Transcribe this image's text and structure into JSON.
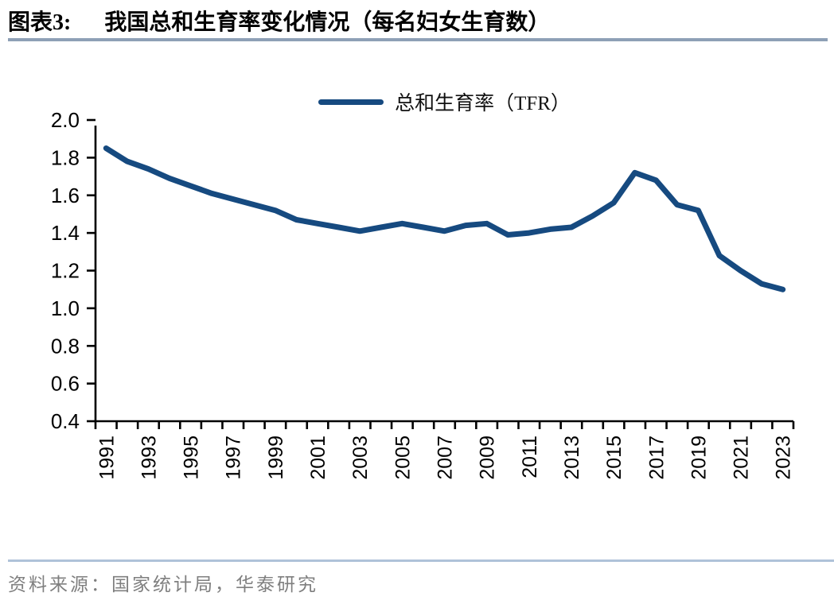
{
  "header": {
    "figure_label": "图表3:",
    "figure_title": "我国总和生育率变化情况（每名妇女生育数）"
  },
  "legend": {
    "label": "总和生育率（TFR）"
  },
  "footer": {
    "source": "资料来源：国家统计局，华泰研究"
  },
  "colors": {
    "line": "#164A80",
    "title_rule": "#8EA0B6",
    "footer_rule": "#AFC2D9",
    "source_text": "#7F7F7F",
    "axis": "#000000"
  },
  "chart_data": {
    "type": "line",
    "title": "我国总和生育率变化情况（每名妇女生育数）",
    "legend_entries": [
      "总和生育率（TFR）"
    ],
    "legend_position": "top-center",
    "grid": false,
    "x": [
      1991,
      1992,
      1993,
      1994,
      1995,
      1996,
      1997,
      1998,
      1999,
      2000,
      2001,
      2002,
      2003,
      2004,
      2005,
      2006,
      2007,
      2008,
      2009,
      2010,
      2011,
      2012,
      2013,
      2014,
      2015,
      2016,
      2017,
      2018,
      2019,
      2020,
      2021,
      2022,
      2023
    ],
    "series": [
      {
        "name": "总和生育率（TFR）",
        "color": "#164A80",
        "values": [
          1.85,
          1.78,
          1.74,
          1.69,
          1.65,
          1.61,
          1.58,
          1.55,
          1.52,
          1.47,
          1.45,
          1.43,
          1.41,
          1.43,
          1.45,
          1.43,
          1.41,
          1.44,
          1.45,
          1.39,
          1.4,
          1.42,
          1.43,
          1.49,
          1.56,
          1.72,
          1.68,
          1.55,
          1.52,
          1.28,
          1.2,
          1.13,
          1.1
        ]
      }
    ],
    "ylim": [
      0.4,
      2.0
    ],
    "ytick_step": 0.2,
    "ytick_labels": [
      "0.4",
      "0.6",
      "0.8",
      "1.0",
      "1.2",
      "1.4",
      "1.6",
      "1.8",
      "2.0"
    ],
    "xtick_label_years": [
      1991,
      1993,
      1995,
      1997,
      1999,
      2001,
      2003,
      2005,
      2007,
      2009,
      2011,
      2013,
      2015,
      2017,
      2019,
      2021,
      2023
    ]
  }
}
